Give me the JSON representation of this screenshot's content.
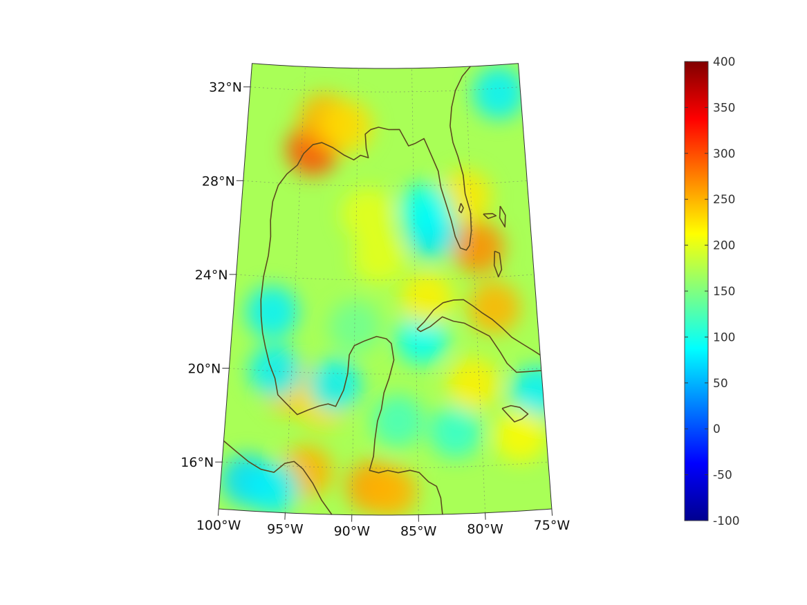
{
  "map": {
    "projection": "conic",
    "region": "Gulf of Mexico and Caribbean",
    "lon_range": [
      -100,
      -75
    ],
    "lat_range": [
      14,
      33
    ],
    "coastline_color": "#5a4a1e",
    "grid": true,
    "lon_ticks": [
      {
        "value": -100,
        "label": "100°W"
      },
      {
        "value": -95,
        "label": "95°W"
      },
      {
        "value": -90,
        "label": "90°W"
      },
      {
        "value": -85,
        "label": "85°W"
      },
      {
        "value": -80,
        "label": "80°W"
      },
      {
        "value": -75,
        "label": "75°W"
      }
    ],
    "lat_ticks": [
      {
        "value": 16,
        "label": "16°N"
      },
      {
        "value": 20,
        "label": "20°N"
      },
      {
        "value": 24,
        "label": "24°N"
      },
      {
        "value": 28,
        "label": "28°N"
      },
      {
        "value": 32,
        "label": "32°N"
      }
    ]
  },
  "colorbar": {
    "colormap": "jet",
    "range": [
      -100,
      400
    ],
    "ticks": [
      {
        "value": 400,
        "label": "400"
      },
      {
        "value": 350,
        "label": "350"
      },
      {
        "value": 300,
        "label": "300"
      },
      {
        "value": 250,
        "label": "250"
      },
      {
        "value": 200,
        "label": "200"
      },
      {
        "value": 150,
        "label": "150"
      },
      {
        "value": 100,
        "label": "100"
      },
      {
        "value": 50,
        "label": "50"
      },
      {
        "value": 0,
        "label": "0"
      },
      {
        "value": -50,
        "label": "-50"
      },
      {
        "value": -100,
        "label": "-100"
      }
    ],
    "colors": [
      "#00008f",
      "#0000ff",
      "#0080ff",
      "#00ffff",
      "#80ff80",
      "#ffff00",
      "#ff8000",
      "#ff0000",
      "#800000"
    ]
  },
  "field": {
    "background_value": 170,
    "features": [
      {
        "lon": -94.0,
        "lat": 29.5,
        "value": 300
      },
      {
        "lon": -93.0,
        "lat": 30.8,
        "value": 250
      },
      {
        "lon": -91.0,
        "lat": 30.5,
        "value": 230
      },
      {
        "lon": -79.6,
        "lat": 25.3,
        "value": 270
      },
      {
        "lon": -78.5,
        "lat": 22.7,
        "value": 250
      },
      {
        "lon": -80.5,
        "lat": 27.5,
        "value": 225
      },
      {
        "lon": -88.5,
        "lat": 15.2,
        "value": 260
      },
      {
        "lon": -87.0,
        "lat": 15.0,
        "value": 250
      },
      {
        "lon": -93.5,
        "lat": 15.8,
        "value": 250
      },
      {
        "lon": -95.0,
        "lat": 19.3,
        "value": 240
      },
      {
        "lon": -92.5,
        "lat": 18.8,
        "value": 230
      },
      {
        "lon": -88.0,
        "lat": 25.0,
        "value": 200
      },
      {
        "lon": -89.0,
        "lat": 26.8,
        "value": 200
      },
      {
        "lon": -83.5,
        "lat": 26.0,
        "value": 75
      },
      {
        "lon": -84.0,
        "lat": 27.0,
        "value": 90
      },
      {
        "lon": -96.8,
        "lat": 22.5,
        "value": 80
      },
      {
        "lon": -96.3,
        "lat": 20.0,
        "value": 80
      },
      {
        "lon": -91.5,
        "lat": 19.5,
        "value": 80
      },
      {
        "lon": -98.0,
        "lat": 15.3,
        "value": 70
      },
      {
        "lon": -96.0,
        "lat": 15.0,
        "value": 80
      },
      {
        "lon": -77.0,
        "lat": 31.8,
        "value": 80
      },
      {
        "lon": -75.5,
        "lat": 19.0,
        "value": 80
      },
      {
        "lon": -84.5,
        "lat": 21.5,
        "value": 90
      },
      {
        "lon": -82.0,
        "lat": 17.5,
        "value": 110
      },
      {
        "lon": -86.5,
        "lat": 18.0,
        "value": 120
      },
      {
        "lon": -90.0,
        "lat": 22.0,
        "value": 140
      },
      {
        "lon": -80.5,
        "lat": 19.5,
        "value": 220
      },
      {
        "lon": -77.0,
        "lat": 17.2,
        "value": 215
      },
      {
        "lon": -84.0,
        "lat": 23.2,
        "value": 220
      }
    ]
  }
}
